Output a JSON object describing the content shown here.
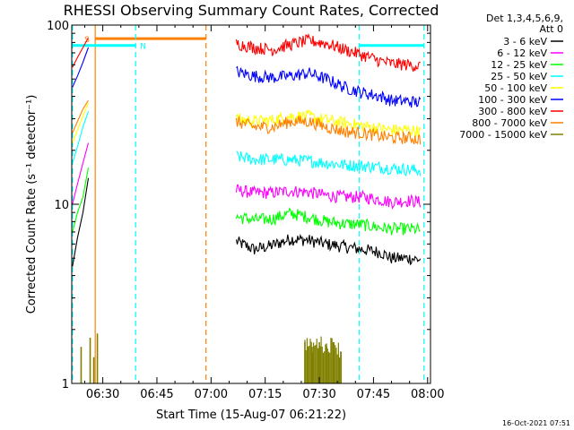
{
  "chart_data": {
    "type": "line",
    "title": "RHESSI Observing Summary Count Rates, Corrected",
    "xlabel": "Start Time (15-Aug-07 06:21:22)",
    "ylabel": "Corrected Count Rate (s⁻¹ detector⁻¹)",
    "yscale": "log",
    "ylim": [
      1,
      100
    ],
    "xlim_minutes": [
      381.4,
      480.8
    ],
    "x_ticks": [
      {
        "label": "06:30",
        "minutes": 390
      },
      {
        "label": "06:45",
        "minutes": 405
      },
      {
        "label": "07:00",
        "minutes": 420
      },
      {
        "label": "07:15",
        "minutes": 435
      },
      {
        "label": "07:30",
        "minutes": 450
      },
      {
        "label": "07:45",
        "minutes": 465
      },
      {
        "label": "08:00",
        "minutes": 480
      }
    ],
    "y_ticks": [
      {
        "label": "1",
        "value": 1
      },
      {
        "label": "10",
        "value": 10
      },
      {
        "label": "100",
        "value": 100
      }
    ],
    "legend_header": [
      "Det 1,3,4,5,6,9,",
      "Att 0"
    ],
    "legend_position": "right",
    "series": [
      {
        "name": "3 - 6 keV",
        "color": "#000000",
        "x": [
          427,
          432,
          437,
          442,
          447,
          452,
          457,
          462,
          467,
          470,
          475,
          478
        ],
        "y": [
          6.2,
          5.6,
          5.9,
          6.4,
          6.3,
          6.0,
          5.8,
          5.6,
          5.4,
          5.0,
          5.0,
          4.9
        ]
      },
      {
        "name": "6 - 12 keV",
        "color": "#ff00ff",
        "x": [
          427,
          432,
          437,
          442,
          447,
          452,
          457,
          462,
          467,
          470,
          475,
          478
        ],
        "y": [
          12,
          11.6,
          11.6,
          11.9,
          11.7,
          11.2,
          11.0,
          11.0,
          10.6,
          10.3,
          10.5,
          10.3
        ]
      },
      {
        "name": "12 - 25 keV",
        "color": "#00ff00",
        "x": [
          427,
          432,
          437,
          442,
          447,
          452,
          457,
          462,
          467,
          470,
          475,
          478
        ],
        "y": [
          8.5,
          8.2,
          8.3,
          8.9,
          8.5,
          8.0,
          7.8,
          7.7,
          7.4,
          7.3,
          7.3,
          7.2
        ]
      },
      {
        "name": "25 - 50 keV",
        "color": "#00ffff",
        "x": [
          427,
          432,
          437,
          442,
          447,
          452,
          457,
          462,
          467,
          470,
          475,
          478
        ],
        "y": [
          18.5,
          17.8,
          17.8,
          17.7,
          17.5,
          17,
          16.6,
          16.4,
          16.1,
          15.9,
          15.6,
          15.5
        ]
      },
      {
        "name": "50 - 100 keV",
        "color": "#ffff00",
        "x": [
          427,
          432,
          437,
          442,
          447,
          452,
          457,
          462,
          467,
          470,
          475,
          478
        ],
        "y": [
          30,
          29,
          29.5,
          31,
          31,
          29.5,
          28.5,
          27.5,
          26.5,
          26,
          26,
          25.5
        ]
      },
      {
        "name": "100 - 300 keV",
        "color": "#0000ff",
        "x": [
          427,
          432,
          437,
          442,
          447,
          452,
          457,
          462,
          467,
          470,
          475,
          478
        ],
        "y": [
          55,
          52,
          51,
          52,
          54,
          50,
          45,
          42,
          40,
          38,
          37.5,
          37
        ]
      },
      {
        "name": "300 - 800 keV",
        "color": "#ff0000",
        "x": [
          427,
          432,
          437,
          442,
          447,
          452,
          457,
          462,
          467,
          470,
          475,
          478
        ],
        "y": [
          79,
          75,
          73,
          78,
          82,
          79,
          73,
          68,
          63,
          61,
          60,
          59
        ]
      },
      {
        "name": "800 - 7000 keV",
        "color": "#ff8000",
        "x": [
          427,
          432,
          437,
          442,
          447,
          452,
          457,
          462,
          467,
          470,
          475,
          478
        ],
        "y": [
          29,
          27,
          27,
          29,
          29,
          27,
          25.5,
          25,
          24,
          23.5,
          23.5,
          23
        ]
      },
      {
        "name": "7000 - 15000 keV",
        "color": "#808000",
        "x": [
          384,
          386.5,
          387.5,
          388.5,
          446,
          448,
          450,
          452,
          454,
          456
        ],
        "y": [
          1.6,
          1.8,
          1.4,
          1.9,
          1.7,
          1.6,
          1.7,
          1.6,
          1.7,
          1.5
        ]
      }
    ],
    "rise": [
      {
        "color": "#000000",
        "x": [
          381.6,
          383,
          384.5,
          386
        ],
        "y": [
          4.5,
          6.5,
          9,
          14
        ]
      },
      {
        "color": "#00ff00",
        "x": [
          381.6,
          383,
          384.5,
          386
        ],
        "y": [
          7,
          9,
          11,
          16
        ]
      },
      {
        "color": "#ff00ff",
        "x": [
          381.6,
          383,
          384.5,
          386
        ],
        "y": [
          10,
          13,
          17,
          22
        ]
      },
      {
        "color": "#00ffff",
        "x": [
          381.6,
          383,
          384.5,
          386
        ],
        "y": [
          17,
          21,
          27,
          33
        ]
      },
      {
        "color": "#ffff00",
        "x": [
          381.6,
          383,
          384.5,
          386
        ],
        "y": [
          22,
          26,
          31,
          37
        ]
      },
      {
        "color": "#ff8000",
        "x": [
          381.6,
          383,
          384.5,
          386
        ],
        "y": [
          25,
          29,
          34,
          38
        ]
      },
      {
        "color": "#0000ff",
        "x": [
          381.6,
          383,
          384.5,
          386
        ],
        "y": [
          45,
          52,
          62,
          75
        ]
      },
      {
        "color": "#ff0000",
        "x": [
          381.6,
          383,
          384.5,
          386
        ],
        "y": [
          58,
          66,
          75,
          85
        ]
      }
    ],
    "annotations": [
      {
        "label": "S",
        "type": "SAA",
        "color": "#ff8000",
        "start_min": 387.9,
        "end_min": 418.6,
        "bar_level": 84
      },
      {
        "label": "N",
        "type": "Night",
        "color": "#00ffff",
        "start_min": 381.6,
        "end_min": 399.1,
        "bar_level": 77
      },
      {
        "label": "",
        "type": "Night",
        "color": "#00ffff",
        "start_min": 461.0,
        "end_min": 479.0,
        "bar_level": 77
      }
    ],
    "timestamp": "16-Oct-2021 07:51"
  }
}
